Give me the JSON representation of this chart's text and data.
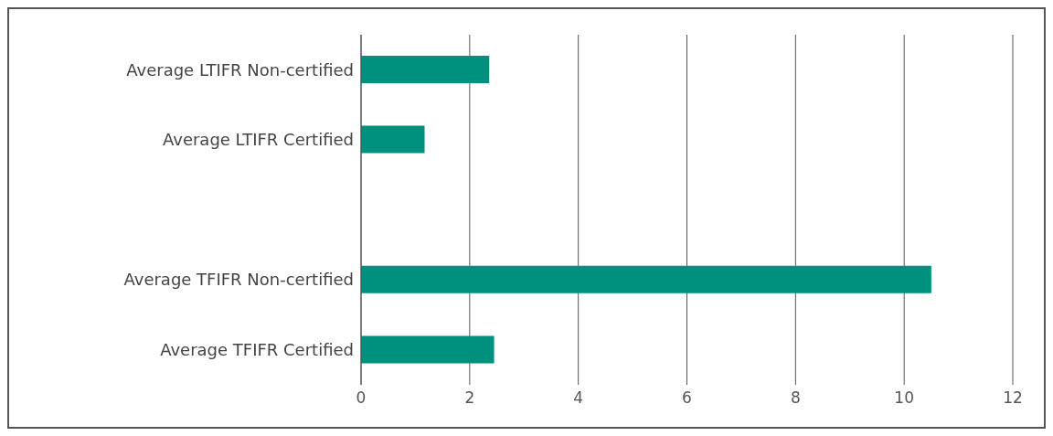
{
  "chart_data": {
    "type": "bar",
    "orientation": "horizontal",
    "categories": [
      "Average LTIFR Non-certified",
      "Average LTIFR Certified",
      null,
      "Average TFIFR Non-certified",
      "Average TFIFR Certified"
    ],
    "values": [
      2.36,
      1.17,
      null,
      10.5,
      2.45
    ],
    "color": "#00907e",
    "xlim": [
      0,
      12
    ],
    "xticks": [
      0,
      2,
      4,
      6,
      8,
      10,
      12
    ],
    "grid": "x"
  }
}
